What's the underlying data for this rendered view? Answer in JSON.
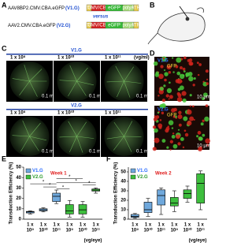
{
  "figure": {
    "labels": [
      "A",
      "B",
      "C",
      "D",
      "E",
      "F"
    ],
    "constructs": [
      {
        "name": "AAV8BP2.CMV.CBA.eGFP",
        "id": "(V1.G)"
      },
      {
        "name": "AAV2.CMV.CBA.eGFP",
        "id": "(V2.G)"
      }
    ],
    "versus": "versus",
    "cassette": [
      "ITR",
      "CMV/CBA",
      "eGFP",
      "polyA",
      "ITR"
    ],
    "panel_c": {
      "groups": [
        "V1.G",
        "V2.G"
      ],
      "doses": [
        "1 x 10⁹",
        "1 x 10¹⁰",
        "1 x 10¹¹"
      ],
      "unit": "(vg/ml)",
      "scale": "0.1 mm"
    },
    "panel_d": {
      "groups": [
        "V1.G",
        "V2.G"
      ],
      "stain": "GFP",
      "scale": "10 μm"
    }
  },
  "chart_data": [
    {
      "type": "box",
      "title": "Week 1",
      "ylabel": "Transduction Efficiency (%)",
      "xlabel": "(vg/eye)",
      "categories": [
        [
          "1 x",
          "10⁹"
        ],
        [
          "1 x",
          "10¹⁰"
        ],
        [
          "1 x",
          "10¹¹"
        ],
        [
          "1 x",
          "10⁹"
        ],
        [
          "1 x",
          "10¹⁰"
        ],
        [
          "1 x",
          "10¹¹"
        ]
      ],
      "ylim": [
        0,
        50
      ],
      "yticks": [
        0,
        10,
        20,
        30,
        40,
        50
      ],
      "series": [
        {
          "name": "V1.G",
          "color": "#6fa8dc",
          "min": [
            5,
            7,
            15,
            null,
            null,
            null
          ],
          "q1": [
            6,
            8,
            17,
            null,
            null,
            null
          ],
          "median": [
            7,
            9,
            22,
            null,
            null,
            null
          ],
          "q3": [
            7.5,
            10,
            25,
            null,
            null,
            null
          ],
          "max": [
            8,
            11,
            28,
            null,
            null,
            null
          ]
        },
        {
          "name": "V2.G",
          "color": "#3dbe3d",
          "min": [
            null,
            null,
            null,
            2,
            2,
            25
          ],
          "q1": [
            null,
            null,
            null,
            5,
            5,
            27
          ],
          "median": [
            null,
            null,
            null,
            8,
            9,
            28
          ],
          "q3": [
            null,
            null,
            null,
            14,
            14,
            29
          ],
          "max": [
            null,
            null,
            null,
            18,
            17,
            30
          ]
        }
      ],
      "annotations": [
        "*",
        "*",
        "*",
        "*",
        "*",
        "*"
      ]
    },
    {
      "type": "box",
      "title": "Week 2",
      "ylabel": "Transduction Efficiency (%)",
      "xlabel": "(vg/eye)",
      "categories": [
        [
          "1 x",
          "10⁹"
        ],
        [
          "1 x",
          "10¹⁰"
        ],
        [
          "1 x",
          "10¹¹"
        ],
        [
          "1 x",
          "10⁹"
        ],
        [
          "1 x",
          "10¹⁰"
        ],
        [
          "1 x",
          "10¹¹"
        ]
      ],
      "ylim": [
        0,
        55
      ],
      "yticks": [
        0,
        10,
        20,
        30,
        40,
        50
      ],
      "series": [
        {
          "name": "V1.G",
          "color": "#6fa8dc",
          "min": [
            1,
            3,
            5,
            null,
            null,
            null
          ],
          "q1": [
            2,
            7,
            15,
            null,
            null,
            null
          ],
          "median": [
            3,
            10,
            25,
            null,
            null,
            null
          ],
          "q3": [
            5,
            18,
            31,
            null,
            null,
            null
          ],
          "max": [
            6,
            22,
            33,
            null,
            null,
            null
          ]
        },
        {
          "name": "V2.G",
          "color": "#3dbe3d",
          "min": [
            null,
            null,
            null,
            8,
            18,
            10
          ],
          "q1": [
            null,
            null,
            null,
            14,
            22,
            17
          ],
          "median": [
            null,
            null,
            null,
            17,
            27,
            38
          ],
          "q3": [
            null,
            null,
            null,
            23,
            31,
            48
          ],
          "max": [
            null,
            null,
            null,
            30,
            35,
            51
          ]
        }
      ],
      "annotations": []
    }
  ]
}
